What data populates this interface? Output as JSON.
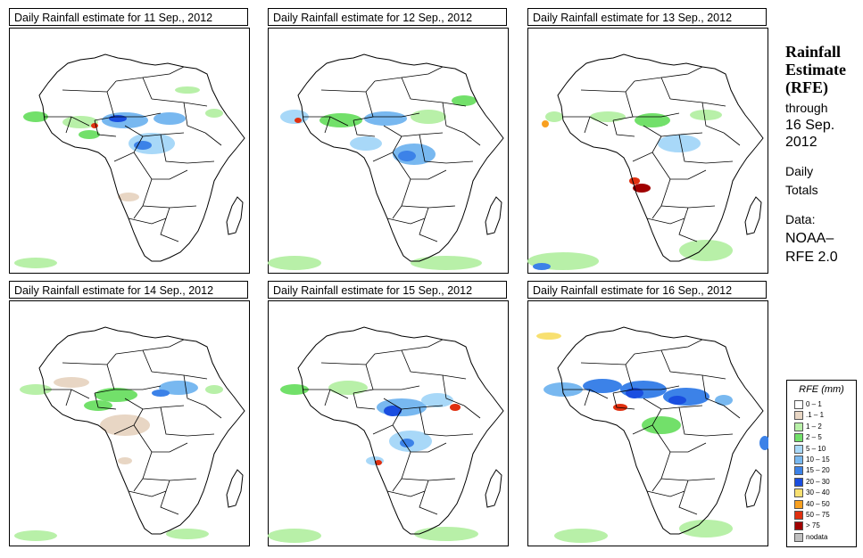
{
  "panels": [
    {
      "title": "Daily Rainfall estimate for  11 Sep., 2012"
    },
    {
      "title": "Daily Rainfall estimate for  12 Sep., 2012"
    },
    {
      "title": "Daily Rainfall estimate for  13 Sep., 2012"
    },
    {
      "title": "Daily Rainfall estimate for  14 Sep., 2012"
    },
    {
      "title": "Daily Rainfall estimate for  15 Sep., 2012"
    },
    {
      "title": "Daily Rainfall estimate for  16 Sep., 2012"
    }
  ],
  "side": {
    "title_line1": "Rainfall",
    "title_line2": "Estimate",
    "title_line3": "(RFE)",
    "through": "through",
    "date_line1": "16 Sep.",
    "date_line2": "2012",
    "daily": "Daily",
    "totals": "Totals",
    "data_label": "Data:",
    "source_line1": "NOAA–",
    "source_line2": "RFE 2.0"
  },
  "legend": {
    "title": "RFE (mm)",
    "items": [
      {
        "label": "0 – 1",
        "color": "#ffffff"
      },
      {
        "label": ".1 – 1",
        "color": "#e8d6c4"
      },
      {
        "label": "1 – 2",
        "color": "#b8f0a8"
      },
      {
        "label": "2 – 5",
        "color": "#72e06a"
      },
      {
        "label": "5 – 10",
        "color": "#a8d8f8"
      },
      {
        "label": "10 – 15",
        "color": "#78b8f0"
      },
      {
        "label": "15 – 20",
        "color": "#3c82e8"
      },
      {
        "label": "20 – 30",
        "color": "#1a4ee0"
      },
      {
        "label": "30 – 40",
        "color": "#f8e070"
      },
      {
        "label": "40 – 50",
        "color": "#f8a020"
      },
      {
        "label": "50 – 75",
        "color": "#e03010"
      },
      {
        "label": "> 75",
        "color": "#a00000"
      },
      {
        "label": "nodata",
        "color": "#c0c0c0"
      }
    ]
  }
}
